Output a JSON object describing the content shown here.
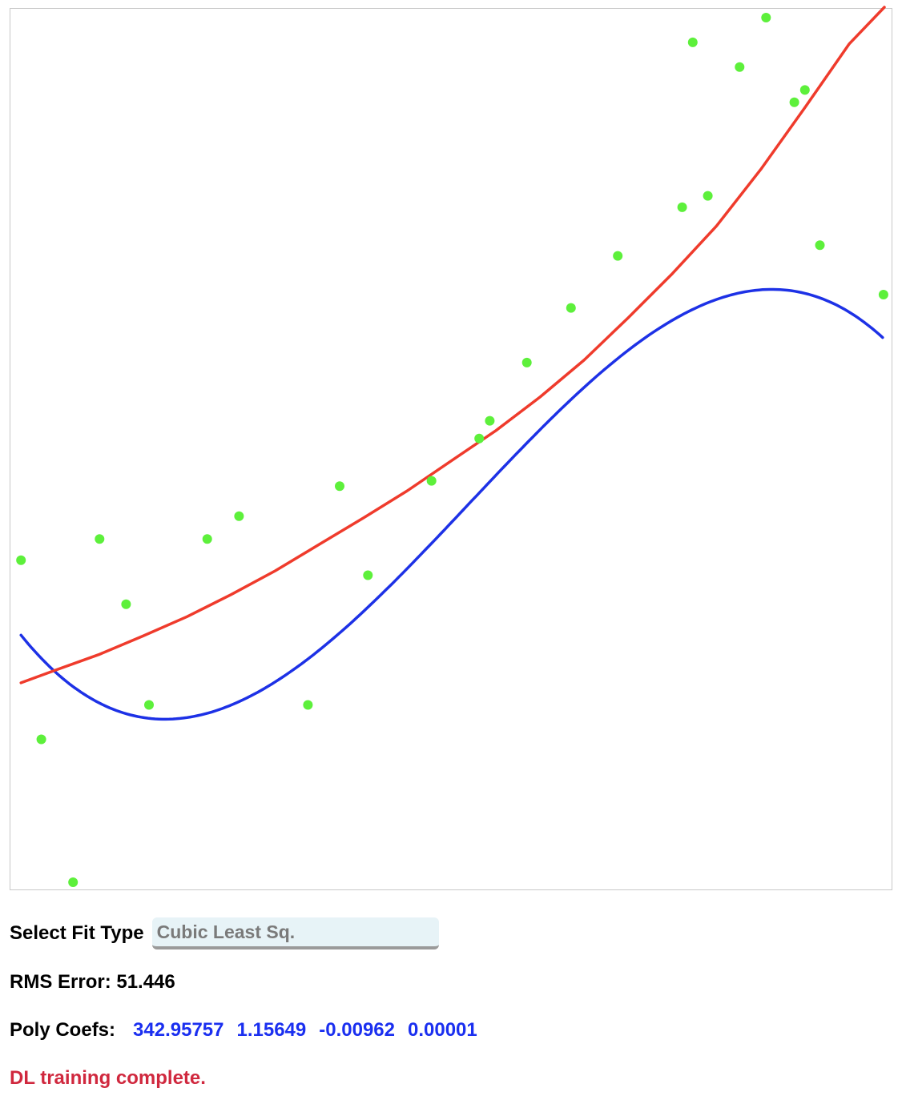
{
  "chart_data": {
    "type": "scatter",
    "title": "",
    "xlabel": "",
    "ylabel": "",
    "xlim": [
      0,
      1000
    ],
    "ylim": [
      0,
      1000
    ],
    "grid": false,
    "colors": {
      "points": "#5df03b",
      "cubic_fit": "#1d31e6",
      "dl_fit": "#ef3b2c"
    },
    "points": [
      {
        "x": 12,
        "y": 375
      },
      {
        "x": 35,
        "y": 172
      },
      {
        "x": 71,
        "y": 10
      },
      {
        "x": 101,
        "y": 399
      },
      {
        "x": 131,
        "y": 325
      },
      {
        "x": 157,
        "y": 211
      },
      {
        "x": 223,
        "y": 399
      },
      {
        "x": 259,
        "y": 425
      },
      {
        "x": 337,
        "y": 211
      },
      {
        "x": 373,
        "y": 459
      },
      {
        "x": 405,
        "y": 358
      },
      {
        "x": 477,
        "y": 465
      },
      {
        "x": 531,
        "y": 513
      },
      {
        "x": 543,
        "y": 533
      },
      {
        "x": 585,
        "y": 599
      },
      {
        "x": 635,
        "y": 661
      },
      {
        "x": 688,
        "y": 720
      },
      {
        "x": 761,
        "y": 775
      },
      {
        "x": 790,
        "y": 788
      },
      {
        "x": 773,
        "y": 962
      },
      {
        "x": 826,
        "y": 934
      },
      {
        "x": 856,
        "y": 990
      },
      {
        "x": 888,
        "y": 894
      },
      {
        "x": 900,
        "y": 908
      },
      {
        "x": 917,
        "y": 732
      },
      {
        "x": 989,
        "y": 676
      }
    ],
    "series": [
      {
        "type": "cubic",
        "coefficients": [
          342.95757,
          1.15649,
          -0.00962,
          1e-05
        ],
        "x_range": [
          12,
          990
        ]
      },
      {
        "type": "dl",
        "x": [
          12,
          50,
          100,
          150,
          200,
          250,
          300,
          350,
          400,
          450,
          500,
          550,
          600,
          650,
          700,
          750,
          800,
          850,
          900,
          950,
          990
        ],
        "y": [
          236,
          250,
          268,
          289,
          311,
          336,
          363,
          393,
          423,
          454,
          488,
          522,
          560,
          602,
          650,
          700,
          754,
          818,
          888,
          960,
          1020
        ]
      }
    ]
  },
  "controls": {
    "fit_label": "Select Fit Type",
    "fit_value": "Cubic Least Sq.",
    "rms_text": "RMS Error: 51.446",
    "coefs_label": "Poly Coefs:",
    "coefs": [
      "342.95757",
      "1.15649",
      "-0.00962",
      "0.00001"
    ],
    "status": "DL training complete."
  }
}
